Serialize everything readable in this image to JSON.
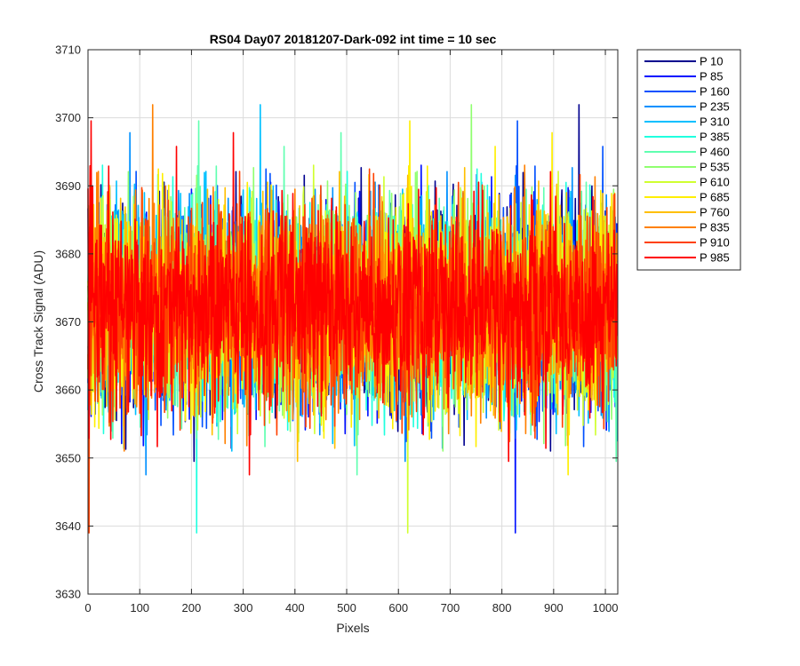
{
  "chart_data": {
    "type": "line",
    "title": "RS04 Day07 20181207-Dark-092 int time = 10 sec",
    "xlabel": "Pixels",
    "ylabel": "Cross Track Signal (ADU)",
    "xlim": [
      0,
      1024
    ],
    "ylim": [
      3630,
      3710
    ],
    "xticks": [
      0,
      100,
      200,
      300,
      400,
      500,
      600,
      700,
      800,
      900,
      1000
    ],
    "yticks": [
      3630,
      3640,
      3650,
      3660,
      3670,
      3680,
      3690,
      3700,
      3710
    ],
    "grid": true,
    "legend_position": "outside-top-right",
    "n_points": 1024,
    "center_value": 3672,
    "series": [
      {
        "name": "P 10",
        "color": "#00008f"
      },
      {
        "name": "P 85",
        "color": "#0010ff"
      },
      {
        "name": "P 160",
        "color": "#0050ff"
      },
      {
        "name": "P 235",
        "color": "#0090ff"
      },
      {
        "name": "P 310",
        "color": "#00c0ff"
      },
      {
        "name": "P 385",
        "color": "#20ffdf"
      },
      {
        "name": "P 460",
        "color": "#60ffb0"
      },
      {
        "name": "P 535",
        "color": "#90ff70"
      },
      {
        "name": "P 610",
        "color": "#d0ff30"
      },
      {
        "name": "P 685",
        "color": "#ffef00"
      },
      {
        "name": "P 760",
        "color": "#ffbf00"
      },
      {
        "name": "P 835",
        "color": "#ff8000"
      },
      {
        "name": "P 910",
        "color": "#ff4000"
      },
      {
        "name": "P 985",
        "color": "#ff0000"
      }
    ]
  }
}
